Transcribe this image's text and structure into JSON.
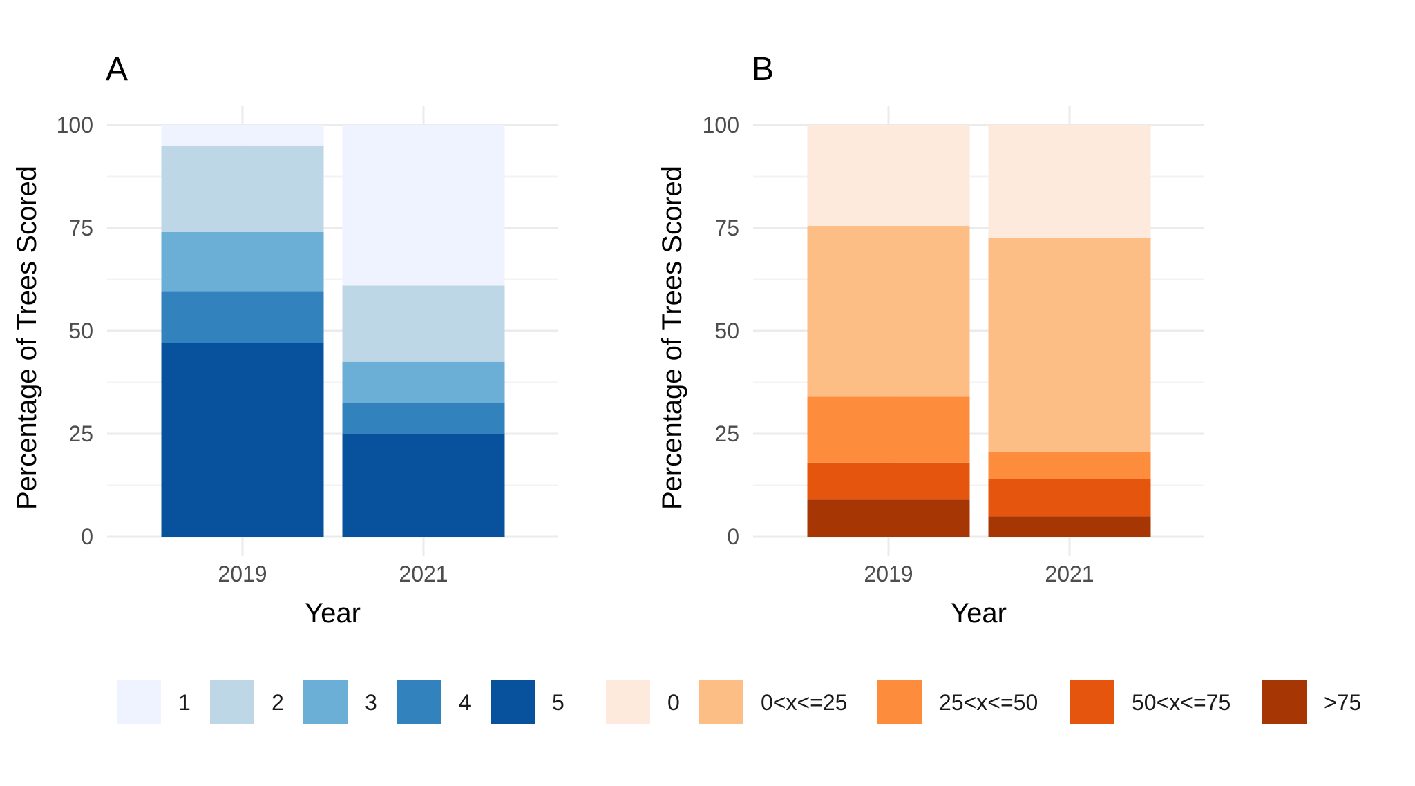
{
  "chart_data": [
    {
      "type": "bar",
      "stacked": true,
      "panel_label": "A",
      "xlabel": "Year",
      "ylabel": "Percentage of Trees Scored",
      "ylim": [
        0,
        100
      ],
      "yticks": [
        "0",
        "25",
        "50",
        "75",
        "100"
      ],
      "grid": true,
      "categories": [
        "2019",
        "2021"
      ],
      "series": [
        {
          "name": "5",
          "color": "#08519c",
          "values": [
            47,
            25
          ]
        },
        {
          "name": "4",
          "color": "#3182bd",
          "values": [
            12.5,
            7.5
          ]
        },
        {
          "name": "3",
          "color": "#6baed6",
          "values": [
            14.5,
            10
          ]
        },
        {
          "name": "2",
          "color": "#bdd7e7",
          "values": [
            21,
            18.5
          ]
        },
        {
          "name": "1",
          "color": "#eff3ff",
          "values": [
            5,
            39
          ]
        }
      ]
    },
    {
      "type": "bar",
      "stacked": true,
      "panel_label": "B",
      "xlabel": "Year",
      "ylabel": "Percentage of Trees Scored",
      "ylim": [
        0,
        100
      ],
      "yticks": [
        "0",
        "25",
        "50",
        "75",
        "100"
      ],
      "grid": true,
      "categories": [
        "2019",
        "2021"
      ],
      "series": [
        {
          "name": ">75",
          "color": "#a63603",
          "values": [
            9,
            5
          ]
        },
        {
          "name": "50<x<=75",
          "color": "#e6550d",
          "values": [
            9,
            9
          ]
        },
        {
          "name": "25<x<=50",
          "color": "#fd8d3c",
          "values": [
            16,
            6.5
          ]
        },
        {
          "name": "0<x<=25",
          "color": "#fdbe85",
          "values": [
            41.5,
            52
          ]
        },
        {
          "name": "0",
          "color": "#feeadc",
          "values": [
            24.5,
            27.5
          ]
        }
      ]
    }
  ],
  "legend": {
    "placement": "bottom",
    "items": [
      {
        "label": "1",
        "color": "#eff3ff"
      },
      {
        "label": "2",
        "color": "#bdd7e7"
      },
      {
        "label": "3",
        "color": "#6baed6"
      },
      {
        "label": "4",
        "color": "#3182bd"
      },
      {
        "label": "5",
        "color": "#08519c"
      },
      {
        "label": "0",
        "color": "#feeadc"
      },
      {
        "label": "0<x<=25",
        "color": "#fdbe85"
      },
      {
        "label": "25<x<=50",
        "color": "#fd8d3c"
      },
      {
        "label": "50<x<=75",
        "color": "#e6550d"
      },
      {
        "label": ">75",
        "color": "#a63603"
      }
    ]
  }
}
